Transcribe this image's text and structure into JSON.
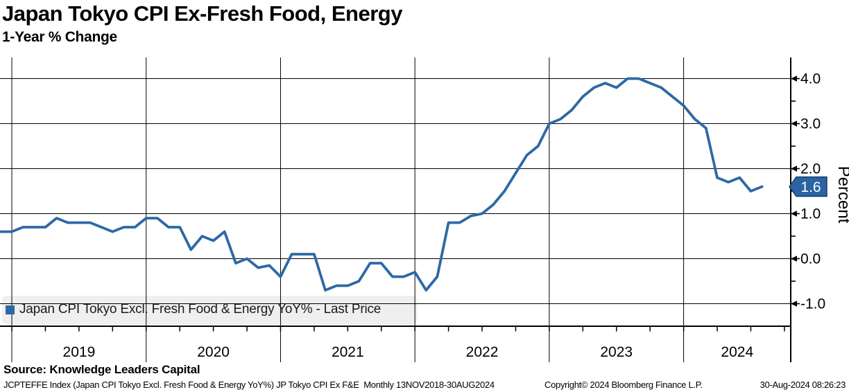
{
  "header": {
    "title": "Japan Tokyo CPI Ex-Fresh Food, Energy",
    "subtitle": "1-Year % Change"
  },
  "chart_data": {
    "type": "line",
    "title": "Japan Tokyo CPI Ex-Fresh Food, Energy",
    "subtitle": "1-Year % Change",
    "ylabel": "Percent",
    "ylim": [
      -1.5,
      4.47
    ],
    "grid": true,
    "x_frequency": "monthly",
    "x_months_start": "2018-12",
    "x_months_end": "2024-08",
    "x_tick_labels": [
      "2019",
      "2020",
      "2021",
      "2022",
      "2023",
      "2024"
    ],
    "y_ticks": [
      {
        "value": 4.0,
        "label": "4.0"
      },
      {
        "value": 3.0,
        "label": "3.0"
      },
      {
        "value": 2.0,
        "label": "2.0"
      },
      {
        "value": 1.0,
        "label": "1.0"
      },
      {
        "value": 0.0,
        "label": "0.0"
      },
      {
        "value": -1.0,
        "label": "-1.0"
      }
    ],
    "y_minor_ticks": [
      3.5,
      2.5,
      1.5,
      0.5,
      -0.5
    ],
    "series": [
      {
        "name": "Japan CPI Tokyo Excl. Fresh Food & Energy YoY% - Last Price",
        "color": "#2d69a5",
        "values": [
          0.6,
          0.6,
          0.7,
          0.7,
          0.7,
          0.9,
          0.8,
          0.8,
          0.8,
          0.7,
          0.6,
          0.7,
          0.7,
          0.9,
          0.9,
          0.7,
          0.7,
          0.2,
          0.5,
          0.4,
          0.6,
          -0.1,
          0.0,
          -0.2,
          -0.15,
          -0.4,
          0.1,
          0.1,
          0.1,
          -0.7,
          -0.6,
          -0.6,
          -0.5,
          -0.1,
          -0.1,
          -0.4,
          -0.4,
          -0.3,
          -0.7,
          -0.4,
          0.8,
          0.8,
          0.95,
          1.0,
          1.2,
          1.5,
          1.9,
          2.3,
          2.5,
          3.0,
          3.1,
          3.3,
          3.6,
          3.8,
          3.9,
          3.8,
          4.0,
          4.0,
          3.9,
          3.8,
          3.6,
          3.4,
          3.1,
          2.9,
          1.8,
          1.7,
          1.8,
          1.5,
          1.6
        ]
      }
    ],
    "last_price": 1.6,
    "last_price_label": "1.6",
    "badge_color": "#2b63a3",
    "legend_background": "#efefef"
  },
  "footer": {
    "source": "Source: Knowledge Leaders Capital",
    "meta": "JCPTEFFE Index (Japan CPI Tokyo Excl. Fresh Food & Energy YoY%) JP Tokyo CPI Ex F&E  Monthly 13NOV2018-30AUG2024",
    "copyright": "Copyright© 2024 Bloomberg Finance L.P.",
    "timestamp": "30-Aug-2024 08:26:23"
  }
}
